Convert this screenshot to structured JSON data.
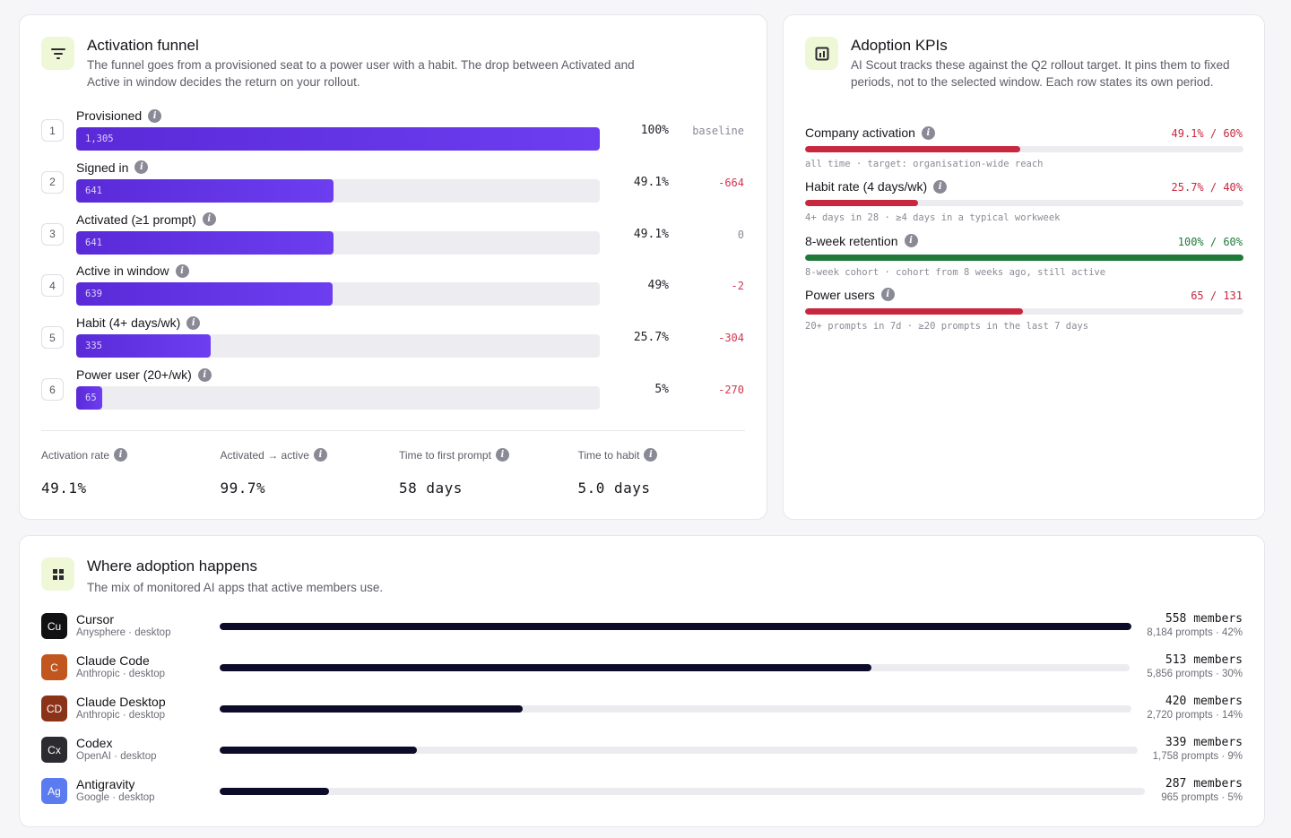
{
  "funnel": {
    "title": "Activation funnel",
    "subtitle": "The funnel goes from a provisioned seat to a power user with a habit. The drop between Activated and Active in window decides the return on your rollout.",
    "icon": "filter-icon",
    "steps": [
      {
        "num": "1",
        "label": "Provisioned",
        "count": "1,305",
        "pct": "100%",
        "delta": "baseline",
        "fill": 1.0
      },
      {
        "num": "2",
        "label": "Signed in",
        "count": "641",
        "pct": "49.1%",
        "delta": "-664",
        "fill": 0.491
      },
      {
        "num": "3",
        "label": "Activated (≥1 prompt)",
        "count": "641",
        "pct": "49.1%",
        "delta": "0",
        "fill": 0.491
      },
      {
        "num": "4",
        "label": "Active in window",
        "count": "639",
        "pct": "49%",
        "delta": "-2",
        "fill": 0.49
      },
      {
        "num": "5",
        "label": "Habit (4+ days/wk)",
        "count": "335",
        "pct": "25.7%",
        "delta": "-304",
        "fill": 0.257
      },
      {
        "num": "6",
        "label": "Power user (20+/wk)",
        "count": "65",
        "pct": "5%",
        "delta": "-270",
        "fill": 0.05
      }
    ],
    "metrics": [
      {
        "label": "Activation rate",
        "value": "49.1%"
      },
      {
        "label": "Activated → active",
        "value": "99.7%"
      },
      {
        "label": "Time to first prompt",
        "value": "58 days"
      },
      {
        "label": "Time to habit",
        "value": "5.0 days"
      }
    ]
  },
  "kpis": {
    "title": "Adoption KPIs",
    "subtitle": "AI Scout tracks these against the Q2 rollout target. It pins them to fixed periods, not to the selected window. Each row states its own period.",
    "icon": "chart-box-icon",
    "colors": {
      "below": "#c8283f",
      "met": "#1f7a3a"
    },
    "items": [
      {
        "label": "Company activation",
        "value": "49.1% / 60%",
        "note": "all time · target: organisation-wide reach",
        "fill": 0.491,
        "status": "below"
      },
      {
        "label": "Habit rate (4 days/wk)",
        "value": "25.7% / 40%",
        "note": "4+ days in 28 · ≥4 days in a typical workweek",
        "fill": 0.257,
        "status": "below"
      },
      {
        "label": "8-week retention",
        "value": "100% / 60%",
        "note": "8-week cohort · cohort from 8 weeks ago, still active",
        "fill": 1.0,
        "status": "met"
      },
      {
        "label": "Power users",
        "value": "65 / 131",
        "note": "20+ prompts in 7d · ≥20 prompts in the last 7 days",
        "fill": 0.496,
        "status": "below"
      }
    ]
  },
  "apps": {
    "title": "Where adoption happens",
    "subtitle": "The mix of monitored AI apps that active members use.",
    "icon": "grid-icon",
    "items": [
      {
        "badge": "Cu",
        "color": "#111114",
        "name": "Cursor",
        "meta": "Anysphere · desktop",
        "members": "558 members",
        "detail": "8,184 prompts · 42%",
        "fill": 1.0
      },
      {
        "badge": "C",
        "color": "#c2561f",
        "name": "Claude Code",
        "meta": "Anthropic · desktop",
        "members": "513 members",
        "detail": "5,856 prompts · 30%",
        "fill": 0.716
      },
      {
        "badge": "CD",
        "color": "#8a3318",
        "name": "Claude Desktop",
        "meta": "Anthropic · desktop",
        "members": "420 members",
        "detail": "2,720 prompts · 14%",
        "fill": 0.332
      },
      {
        "badge": "Cx",
        "color": "#2b2b30",
        "name": "Codex",
        "meta": "OpenAI · desktop",
        "members": "339 members",
        "detail": "1,758 prompts · 9%",
        "fill": 0.215
      },
      {
        "badge": "Ag",
        "color": "#5b7bf0",
        "name": "Antigravity",
        "meta": "Google · desktop",
        "members": "287 members",
        "detail": "965 prompts · 5%",
        "fill": 0.118
      }
    ]
  }
}
